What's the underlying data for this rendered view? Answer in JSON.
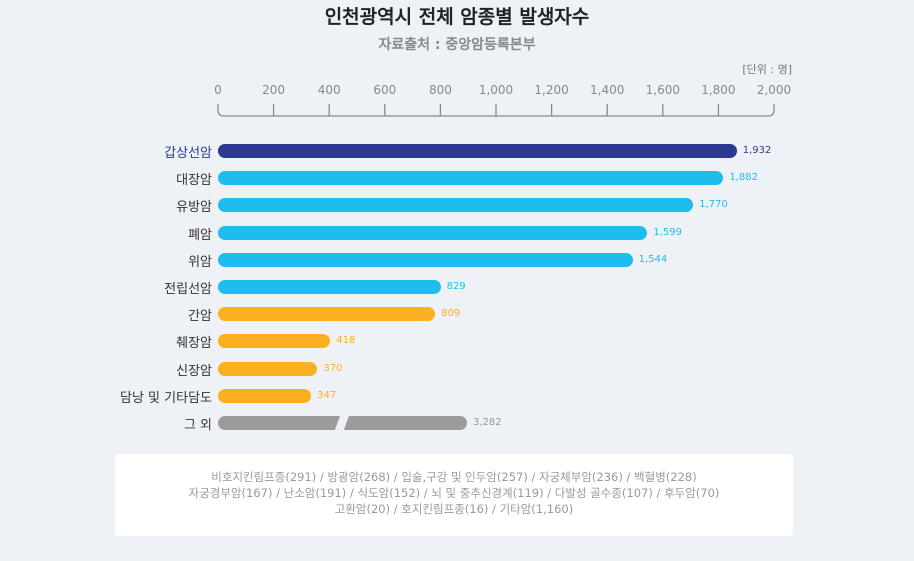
{
  "chart_data": {
    "type": "bar",
    "orientation": "horizontal",
    "title": "인천광역시 전체 암종별 발생자수",
    "subtitle": "자료출처 : 중앙암등록본부",
    "unit": "[단위 : 명]",
    "xlim": [
      0,
      2000
    ],
    "ticks": [
      "0",
      "200",
      "400",
      "600",
      "800",
      "1,000",
      "1,200",
      "1,400",
      "1,600",
      "1,800",
      "2,000"
    ],
    "tick_values": [
      0,
      200,
      400,
      600,
      800,
      1000,
      1200,
      1400,
      1600,
      1800,
      2000
    ],
    "categories": [
      "갑상선암",
      "대장암",
      "유방암",
      "폐암",
      "위암",
      "전립선암",
      "간암",
      "췌장암",
      "신장암",
      "담낭 및 기타담도",
      "그 외"
    ],
    "values": [
      1932,
      1882,
      1770,
      1599,
      1544,
      829,
      809,
      418,
      370,
      347,
      3282
    ],
    "value_labels": [
      "1,932",
      "1,882",
      "1,770",
      "1,599",
      "1,544",
      "829",
      "809",
      "418",
      "370",
      "347",
      "3,282"
    ],
    "colors": [
      "#2b3990",
      "#1fbdee",
      "#1fbdee",
      "#1fbdee",
      "#1fbdee",
      "#1fbdee",
      "#fbb01f",
      "#fbb01f",
      "#fbb01f",
      "#fbb01f",
      "#9b9b9b"
    ],
    "broken_axis_last": true,
    "note_lines": [
      "비호지킨림프종(291) / 방광암(268) /  입술,구강 및 인두암(257) / 자궁체부암(236) / 백혈병(228)",
      "자궁경부암(167) / 난소암(191) / 식도암(152) / 뇌 및 중추신경계(119) / 다발성 골수종(107) / 후두암(70)",
      "고환암(20) / 호지킨림프종(16) / 기타암(1,160)"
    ]
  }
}
